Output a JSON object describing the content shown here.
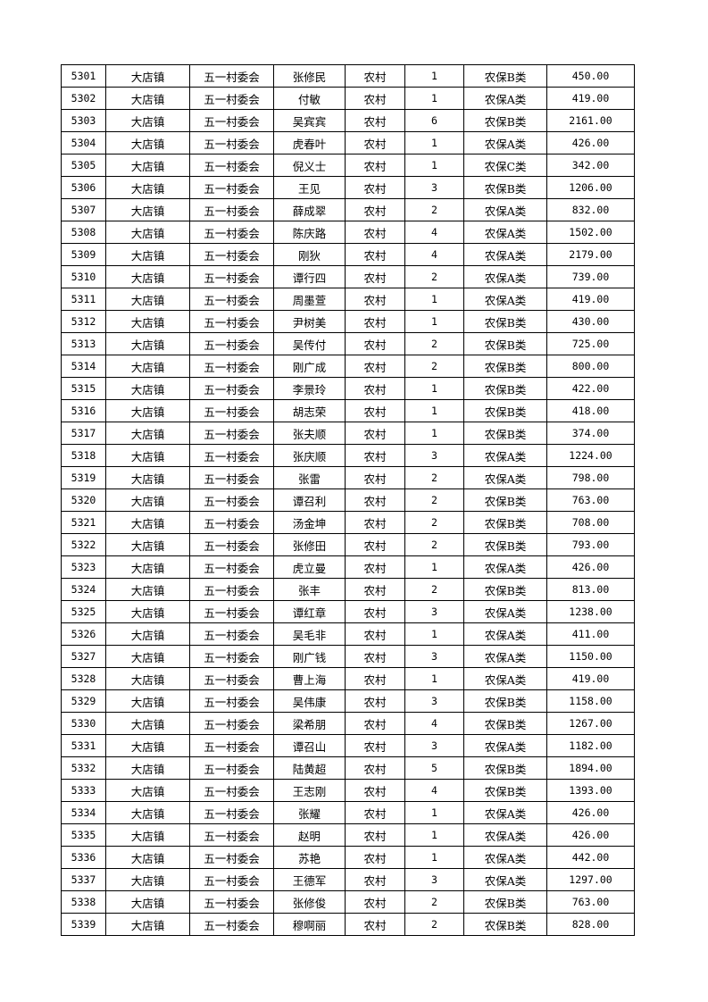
{
  "table": {
    "rows": [
      [
        "5301",
        "大店镇",
        "五一村委会",
        "张修民",
        "农村",
        "1",
        "农保B类",
        "450.00"
      ],
      [
        "5302",
        "大店镇",
        "五一村委会",
        "付敏",
        "农村",
        "1",
        "农保A类",
        "419.00"
      ],
      [
        "5303",
        "大店镇",
        "五一村委会",
        "吴宾宾",
        "农村",
        "6",
        "农保B类",
        "2161.00"
      ],
      [
        "5304",
        "大店镇",
        "五一村委会",
        "虎春叶",
        "农村",
        "1",
        "农保A类",
        "426.00"
      ],
      [
        "5305",
        "大店镇",
        "五一村委会",
        "倪义士",
        "农村",
        "1",
        "农保C类",
        "342.00"
      ],
      [
        "5306",
        "大店镇",
        "五一村委会",
        "王见",
        "农村",
        "3",
        "农保B类",
        "1206.00"
      ],
      [
        "5307",
        "大店镇",
        "五一村委会",
        "薛成翠",
        "农村",
        "2",
        "农保A类",
        "832.00"
      ],
      [
        "5308",
        "大店镇",
        "五一村委会",
        "陈庆路",
        "农村",
        "4",
        "农保A类",
        "1502.00"
      ],
      [
        "5309",
        "大店镇",
        "五一村委会",
        "刚狄",
        "农村",
        "4",
        "农保A类",
        "2179.00"
      ],
      [
        "5310",
        "大店镇",
        "五一村委会",
        "谭行四",
        "农村",
        "2",
        "农保A类",
        "739.00"
      ],
      [
        "5311",
        "大店镇",
        "五一村委会",
        "周墨萱",
        "农村",
        "1",
        "农保A类",
        "419.00"
      ],
      [
        "5312",
        "大店镇",
        "五一村委会",
        "尹树美",
        "农村",
        "1",
        "农保B类",
        "430.00"
      ],
      [
        "5313",
        "大店镇",
        "五一村委会",
        "吴传付",
        "农村",
        "2",
        "农保B类",
        "725.00"
      ],
      [
        "5314",
        "大店镇",
        "五一村委会",
        "刚广成",
        "农村",
        "2",
        "农保B类",
        "800.00"
      ],
      [
        "5315",
        "大店镇",
        "五一村委会",
        "李景玲",
        "农村",
        "1",
        "农保B类",
        "422.00"
      ],
      [
        "5316",
        "大店镇",
        "五一村委会",
        "胡志荣",
        "农村",
        "1",
        "农保B类",
        "418.00"
      ],
      [
        "5317",
        "大店镇",
        "五一村委会",
        "张夫顺",
        "农村",
        "1",
        "农保B类",
        "374.00"
      ],
      [
        "5318",
        "大店镇",
        "五一村委会",
        "张庆顺",
        "农村",
        "3",
        "农保A类",
        "1224.00"
      ],
      [
        "5319",
        "大店镇",
        "五一村委会",
        "张雷",
        "农村",
        "2",
        "农保A类",
        "798.00"
      ],
      [
        "5320",
        "大店镇",
        "五一村委会",
        "谭召利",
        "农村",
        "2",
        "农保B类",
        "763.00"
      ],
      [
        "5321",
        "大店镇",
        "五一村委会",
        "汤金坤",
        "农村",
        "2",
        "农保B类",
        "708.00"
      ],
      [
        "5322",
        "大店镇",
        "五一村委会",
        "张修田",
        "农村",
        "2",
        "农保B类",
        "793.00"
      ],
      [
        "5323",
        "大店镇",
        "五一村委会",
        "虎立曼",
        "农村",
        "1",
        "农保A类",
        "426.00"
      ],
      [
        "5324",
        "大店镇",
        "五一村委会",
        "张丰",
        "农村",
        "2",
        "农保B类",
        "813.00"
      ],
      [
        "5325",
        "大店镇",
        "五一村委会",
        "谭红章",
        "农村",
        "3",
        "农保A类",
        "1238.00"
      ],
      [
        "5326",
        "大店镇",
        "五一村委会",
        "吴毛非",
        "农村",
        "1",
        "农保A类",
        "411.00"
      ],
      [
        "5327",
        "大店镇",
        "五一村委会",
        "刚广钱",
        "农村",
        "3",
        "农保A类",
        "1150.00"
      ],
      [
        "5328",
        "大店镇",
        "五一村委会",
        "曹上海",
        "农村",
        "1",
        "农保A类",
        "419.00"
      ],
      [
        "5329",
        "大店镇",
        "五一村委会",
        "吴伟康",
        "农村",
        "3",
        "农保B类",
        "1158.00"
      ],
      [
        "5330",
        "大店镇",
        "五一村委会",
        "梁希朋",
        "农村",
        "4",
        "农保B类",
        "1267.00"
      ],
      [
        "5331",
        "大店镇",
        "五一村委会",
        "谭召山",
        "农村",
        "3",
        "农保A类",
        "1182.00"
      ],
      [
        "5332",
        "大店镇",
        "五一村委会",
        "陆黄超",
        "农村",
        "5",
        "农保B类",
        "1894.00"
      ],
      [
        "5333",
        "大店镇",
        "五一村委会",
        "王志刚",
        "农村",
        "4",
        "农保B类",
        "1393.00"
      ],
      [
        "5334",
        "大店镇",
        "五一村委会",
        "张耀",
        "农村",
        "1",
        "农保A类",
        "426.00"
      ],
      [
        "5335",
        "大店镇",
        "五一村委会",
        "赵明",
        "农村",
        "1",
        "农保A类",
        "426.00"
      ],
      [
        "5336",
        "大店镇",
        "五一村委会",
        "苏艳",
        "农村",
        "1",
        "农保A类",
        "442.00"
      ],
      [
        "5337",
        "大店镇",
        "五一村委会",
        "王德军",
        "农村",
        "3",
        "农保A类",
        "1297.00"
      ],
      [
        "5338",
        "大店镇",
        "五一村委会",
        "张修俊",
        "农村",
        "2",
        "农保B类",
        "763.00"
      ],
      [
        "5339",
        "大店镇",
        "五一村委会",
        "穆啊丽",
        "农村",
        "2",
        "农保B类",
        "828.00"
      ]
    ]
  }
}
